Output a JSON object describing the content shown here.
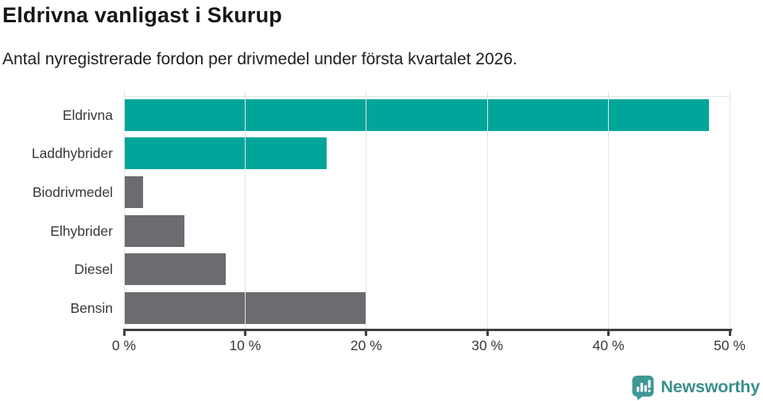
{
  "header": {
    "title": "Eldrivna vanligast i Skurup",
    "subtitle": "Antal nyregistrerade fordon per drivmedel under första kvartalet 2026."
  },
  "chart_data": {
    "type": "bar",
    "orientation": "horizontal",
    "title": "Eldrivna vanligast i Skurup",
    "subtitle": "Antal nyregistrerade fordon per drivmedel under första kvartalet 2026.",
    "xlabel": "",
    "ylabel": "",
    "unit": "%",
    "categories": [
      "Eldrivna",
      "Laddhybrider",
      "Biodrivmedel",
      "Elhybrider",
      "Diesel",
      "Bensin"
    ],
    "values": [
      48.3,
      16.7,
      1.6,
      5.0,
      8.4,
      20.0
    ],
    "bar_colors": [
      "#00a59a",
      "#00a59a",
      "#6b6b70",
      "#6b6b70",
      "#6b6b70",
      "#6b6b70"
    ],
    "xlim": [
      0,
      50
    ],
    "x_ticks": [
      {
        "value": 0,
        "label": "0 %"
      },
      {
        "value": 10,
        "label": "10 %"
      },
      {
        "value": 20,
        "label": "20 %"
      },
      {
        "value": 30,
        "label": "30 %"
      },
      {
        "value": 40,
        "label": "40 %"
      },
      {
        "value": 50,
        "label": "50 %"
      }
    ],
    "grid": true,
    "legend": "none"
  },
  "branding": {
    "logo_text": "Newsworthy",
    "logo_icon": "bar-chart-speech-bubble-icon",
    "logo_color": "#3a8f8d",
    "icon_color": "#3f9894"
  },
  "colors": {
    "accent_teal": "#00a59a",
    "bar_gray": "#6b6b70",
    "axis": "#3e3e43",
    "grid": "#e4e4e4",
    "title_text": "#161613",
    "body_text": "#20201d",
    "tick_text": "#383838",
    "background": "#ffffff"
  }
}
